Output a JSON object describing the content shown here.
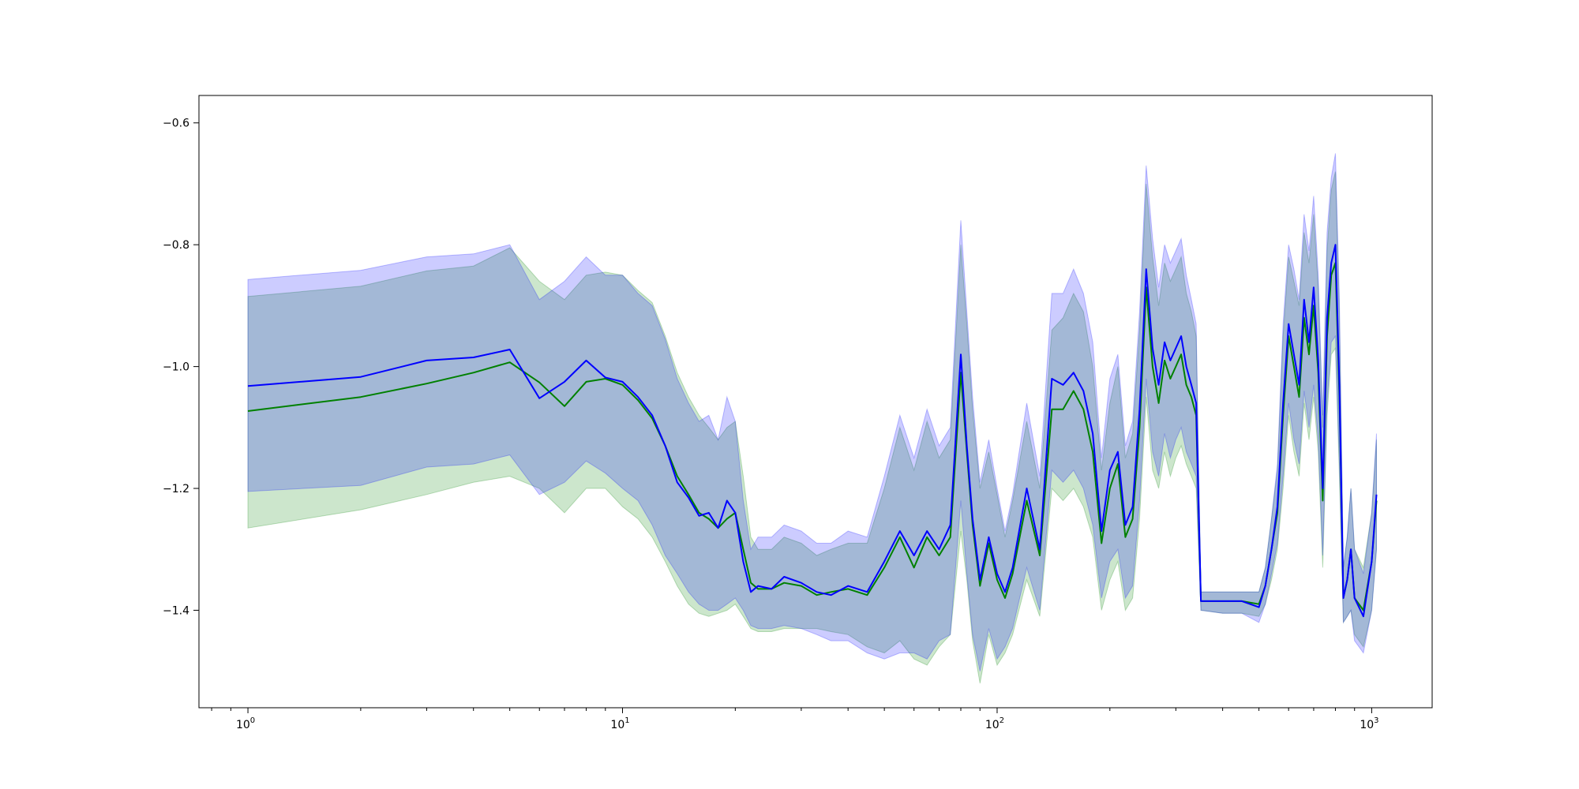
{
  "chart_data": {
    "type": "line",
    "title": "",
    "xlabel": "",
    "ylabel": "",
    "xscale": "log",
    "xlim": [
      0.74,
      1450
    ],
    "ylim": [
      -1.56,
      -0.555
    ],
    "grid": false,
    "legend": "none",
    "x_ticks": [
      {
        "value": 1,
        "base": "10",
        "exp": "0"
      },
      {
        "value": 10,
        "base": "10",
        "exp": "1"
      },
      {
        "value": 100,
        "base": "10",
        "exp": "2"
      },
      {
        "value": 1000,
        "base": "10",
        "exp": "3"
      }
    ],
    "y_ticks": [
      {
        "value": -1.4,
        "label": "−1.4"
      },
      {
        "value": -1.2,
        "label": "−1.2"
      },
      {
        "value": -1.0,
        "label": "−1.0"
      },
      {
        "value": -0.8,
        "label": "−0.8"
      },
      {
        "value": -0.6,
        "label": "−0.6"
      }
    ],
    "series": [
      {
        "color": "#008000",
        "band_color": "#008000",
        "x": [
          1,
          2,
          3,
          4,
          5,
          6,
          7,
          8,
          9,
          10,
          11,
          12,
          13,
          14,
          15,
          16,
          17,
          18,
          19,
          20,
          21,
          22,
          23,
          25,
          27,
          30,
          33,
          36,
          40,
          45,
          50,
          55,
          60,
          65,
          70,
          75,
          80,
          83,
          86,
          90,
          95,
          100,
          105,
          110,
          120,
          130,
          140,
          150,
          160,
          170,
          180,
          190,
          200,
          210,
          220,
          230,
          240,
          250,
          260,
          270,
          280,
          290,
          300,
          310,
          320,
          330,
          340,
          350,
          400,
          450,
          500,
          520,
          540,
          560,
          580,
          600,
          620,
          640,
          660,
          680,
          700,
          720,
          740,
          760,
          780,
          800,
          820,
          840,
          860,
          880,
          900,
          950,
          1000,
          1030
        ],
        "y": [
          -1.073,
          -1.05,
          -1.028,
          -1.01,
          -0.993,
          -1.026,
          -1.065,
          -1.025,
          -1.02,
          -1.03,
          -1.055,
          -1.085,
          -1.13,
          -1.18,
          -1.21,
          -1.24,
          -1.25,
          -1.265,
          -1.25,
          -1.24,
          -1.3,
          -1.355,
          -1.365,
          -1.365,
          -1.355,
          -1.36,
          -1.375,
          -1.37,
          -1.365,
          -1.375,
          -1.33,
          -1.28,
          -1.33,
          -1.28,
          -1.31,
          -1.28,
          -1.01,
          -1.14,
          -1.26,
          -1.36,
          -1.29,
          -1.35,
          -1.38,
          -1.34,
          -1.22,
          -1.31,
          -1.07,
          -1.07,
          -1.04,
          -1.07,
          -1.14,
          -1.29,
          -1.2,
          -1.16,
          -1.28,
          -1.25,
          -1.1,
          -0.87,
          -1.0,
          -1.06,
          -0.99,
          -1.02,
          -1.0,
          -0.98,
          -1.03,
          -1.05,
          -1.08,
          -1.385,
          -1.385,
          -1.385,
          -1.39,
          -1.36,
          -1.3,
          -1.24,
          -1.08,
          -0.95,
          -1.0,
          -1.05,
          -0.92,
          -0.98,
          -0.9,
          -1.01,
          -1.22,
          -0.95,
          -0.85,
          -0.83,
          -1.05,
          -1.38,
          -1.35,
          -1.3,
          -1.38,
          -1.4,
          -1.32,
          -1.22
        ],
        "lower": [
          -1.265,
          -1.235,
          -1.21,
          -1.19,
          -1.18,
          -1.2,
          -1.24,
          -1.2,
          -1.2,
          -1.23,
          -1.25,
          -1.28,
          -1.32,
          -1.36,
          -1.39,
          -1.405,
          -1.41,
          -1.405,
          -1.4,
          -1.39,
          -1.41,
          -1.43,
          -1.435,
          -1.435,
          -1.43,
          -1.43,
          -1.43,
          -1.435,
          -1.44,
          -1.46,
          -1.47,
          -1.45,
          -1.48,
          -1.49,
          -1.46,
          -1.44,
          -1.27,
          -1.35,
          -1.45,
          -1.52,
          -1.44,
          -1.49,
          -1.47,
          -1.44,
          -1.35,
          -1.41,
          -1.2,
          -1.22,
          -1.2,
          -1.23,
          -1.28,
          -1.4,
          -1.35,
          -1.32,
          -1.4,
          -1.38,
          -1.25,
          -1.05,
          -1.17,
          -1.2,
          -1.14,
          -1.18,
          -1.15,
          -1.13,
          -1.16,
          -1.18,
          -1.2,
          -1.4,
          -1.405,
          -1.405,
          -1.41,
          -1.39,
          -1.35,
          -1.3,
          -1.2,
          -1.08,
          -1.14,
          -1.18,
          -1.06,
          -1.12,
          -1.05,
          -1.14,
          -1.33,
          -1.08,
          -0.98,
          -0.97,
          -1.18,
          -1.42,
          -1.41,
          -1.4,
          -1.44,
          -1.46,
          -1.4,
          -1.3
        ],
        "upper": [
          -0.885,
          -0.868,
          -0.843,
          -0.835,
          -0.805,
          -0.86,
          -0.89,
          -0.85,
          -0.845,
          -0.85,
          -0.875,
          -0.895,
          -0.95,
          -1.01,
          -1.05,
          -1.08,
          -1.1,
          -1.12,
          -1.1,
          -1.09,
          -1.18,
          -1.28,
          -1.3,
          -1.3,
          -1.28,
          -1.29,
          -1.31,
          -1.3,
          -1.29,
          -1.29,
          -1.2,
          -1.1,
          -1.17,
          -1.09,
          -1.15,
          -1.12,
          -0.8,
          -0.93,
          -1.07,
          -1.2,
          -1.14,
          -1.21,
          -1.28,
          -1.22,
          -1.09,
          -1.2,
          -0.94,
          -0.92,
          -0.88,
          -0.91,
          -1.0,
          -1.17,
          -1.06,
          -1.0,
          -1.15,
          -1.11,
          -0.94,
          -0.7,
          -0.82,
          -0.9,
          -0.83,
          -0.86,
          -0.84,
          -0.82,
          -0.88,
          -0.91,
          -0.95,
          -1.37,
          -1.37,
          -1.37,
          -1.37,
          -1.33,
          -1.25,
          -1.17,
          -0.95,
          -0.82,
          -0.86,
          -0.9,
          -0.78,
          -0.83,
          -0.75,
          -0.87,
          -1.1,
          -0.81,
          -0.71,
          -0.68,
          -0.91,
          -1.33,
          -1.28,
          -1.2,
          -1.3,
          -1.33,
          -1.24,
          -1.12
        ]
      },
      {
        "color": "#0000ff",
        "band_color": "#0000ff",
        "x": [
          1,
          2,
          3,
          4,
          5,
          6,
          7,
          8,
          9,
          10,
          11,
          12,
          13,
          14,
          15,
          16,
          17,
          18,
          19,
          20,
          21,
          22,
          23,
          25,
          27,
          30,
          33,
          36,
          40,
          45,
          50,
          55,
          60,
          65,
          70,
          75,
          80,
          83,
          86,
          90,
          95,
          100,
          105,
          110,
          120,
          130,
          140,
          150,
          160,
          170,
          180,
          190,
          200,
          210,
          220,
          230,
          240,
          250,
          260,
          270,
          280,
          290,
          300,
          310,
          320,
          330,
          340,
          350,
          400,
          450,
          500,
          520,
          540,
          560,
          580,
          600,
          620,
          640,
          660,
          680,
          700,
          720,
          740,
          760,
          780,
          800,
          820,
          840,
          860,
          880,
          900,
          950,
          1000,
          1030
        ],
        "y": [
          -1.032,
          -1.017,
          -0.99,
          -0.985,
          -0.972,
          -1.052,
          -1.025,
          -0.99,
          -1.018,
          -1.025,
          -1.05,
          -1.08,
          -1.13,
          -1.19,
          -1.215,
          -1.245,
          -1.24,
          -1.265,
          -1.22,
          -1.24,
          -1.32,
          -1.37,
          -1.36,
          -1.365,
          -1.345,
          -1.355,
          -1.37,
          -1.375,
          -1.36,
          -1.37,
          -1.32,
          -1.27,
          -1.31,
          -1.27,
          -1.3,
          -1.26,
          -0.98,
          -1.13,
          -1.25,
          -1.35,
          -1.28,
          -1.34,
          -1.37,
          -1.33,
          -1.2,
          -1.3,
          -1.02,
          -1.03,
          -1.01,
          -1.04,
          -1.11,
          -1.27,
          -1.17,
          -1.14,
          -1.26,
          -1.23,
          -1.07,
          -0.84,
          -0.97,
          -1.03,
          -0.96,
          -0.99,
          -0.97,
          -0.95,
          -1.0,
          -1.03,
          -1.06,
          -1.385,
          -1.385,
          -1.385,
          -1.395,
          -1.36,
          -1.3,
          -1.23,
          -1.06,
          -0.93,
          -0.98,
          -1.03,
          -0.89,
          -0.96,
          -0.87,
          -0.99,
          -1.2,
          -0.92,
          -0.83,
          -0.8,
          -1.03,
          -1.38,
          -1.35,
          -1.3,
          -1.38,
          -1.41,
          -1.32,
          -1.21
        ],
        "lower": [
          -1.205,
          -1.195,
          -1.165,
          -1.16,
          -1.145,
          -1.21,
          -1.19,
          -1.155,
          -1.175,
          -1.2,
          -1.22,
          -1.26,
          -1.31,
          -1.34,
          -1.37,
          -1.39,
          -1.4,
          -1.4,
          -1.39,
          -1.38,
          -1.4,
          -1.425,
          -1.43,
          -1.43,
          -1.425,
          -1.43,
          -1.44,
          -1.45,
          -1.45,
          -1.47,
          -1.48,
          -1.47,
          -1.47,
          -1.48,
          -1.45,
          -1.44,
          -1.22,
          -1.34,
          -1.44,
          -1.5,
          -1.43,
          -1.48,
          -1.46,
          -1.43,
          -1.33,
          -1.4,
          -1.17,
          -1.19,
          -1.17,
          -1.2,
          -1.26,
          -1.38,
          -1.32,
          -1.3,
          -1.38,
          -1.36,
          -1.22,
          -1.02,
          -1.14,
          -1.18,
          -1.11,
          -1.15,
          -1.12,
          -1.1,
          -1.14,
          -1.16,
          -1.18,
          -1.4,
          -1.405,
          -1.405,
          -1.42,
          -1.39,
          -1.34,
          -1.29,
          -1.18,
          -1.06,
          -1.12,
          -1.16,
          -1.04,
          -1.1,
          -1.03,
          -1.12,
          -1.31,
          -1.06,
          -0.96,
          -0.95,
          -1.16,
          -1.42,
          -1.41,
          -1.4,
          -1.45,
          -1.47,
          -1.4,
          -1.3
        ],
        "upper": [
          -0.857,
          -0.842,
          -0.82,
          -0.815,
          -0.8,
          -0.89,
          -0.86,
          -0.82,
          -0.85,
          -0.85,
          -0.88,
          -0.9,
          -0.955,
          -1.02,
          -1.06,
          -1.09,
          -1.08,
          -1.12,
          -1.05,
          -1.09,
          -1.22,
          -1.3,
          -1.28,
          -1.28,
          -1.26,
          -1.27,
          -1.29,
          -1.29,
          -1.27,
          -1.28,
          -1.18,
          -1.08,
          -1.15,
          -1.07,
          -1.13,
          -1.1,
          -0.76,
          -0.91,
          -1.05,
          -1.19,
          -1.12,
          -1.2,
          -1.27,
          -1.21,
          -1.06,
          -1.18,
          -0.88,
          -0.88,
          -0.84,
          -0.88,
          -0.96,
          -1.15,
          -1.02,
          -0.98,
          -1.13,
          -1.09,
          -0.91,
          -0.67,
          -0.79,
          -0.87,
          -0.8,
          -0.83,
          -0.81,
          -0.79,
          -0.85,
          -0.89,
          -0.93,
          -1.37,
          -1.37,
          -1.37,
          -1.37,
          -1.33,
          -1.25,
          -1.16,
          -0.93,
          -0.8,
          -0.84,
          -0.89,
          -0.75,
          -0.81,
          -0.72,
          -0.85,
          -1.08,
          -0.78,
          -0.69,
          -0.65,
          -0.89,
          -1.33,
          -1.28,
          -1.2,
          -1.3,
          -1.34,
          -1.24,
          -1.11
        ]
      }
    ]
  }
}
